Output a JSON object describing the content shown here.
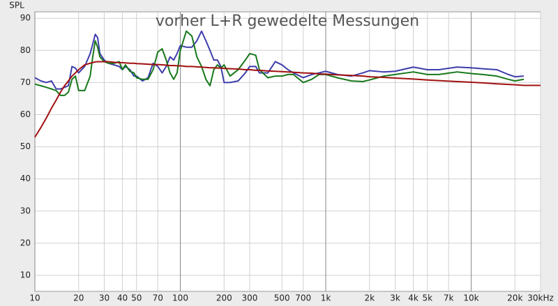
{
  "chart_data": {
    "type": "line",
    "title": "vorher L+R gewedelte Messungen",
    "y_label": "SPL",
    "xscale": "log",
    "grid": true,
    "xlim": [
      10,
      30000
    ],
    "ylim": [
      5,
      92
    ],
    "xticks": [
      10,
      20,
      30,
      40,
      50,
      70,
      100,
      200,
      300,
      500,
      700,
      {
        "value": 1000,
        "label": "1k"
      },
      {
        "value": 2000,
        "label": "2k"
      },
      {
        "value": 3000,
        "label": "3k"
      },
      {
        "value": 4000,
        "label": "4k"
      },
      {
        "value": 5000,
        "label": "5k"
      },
      {
        "value": 7000,
        "label": "7k"
      },
      {
        "value": 10000,
        "label": "10k"
      },
      {
        "value": 20000,
        "label": "20k"
      },
      {
        "value": 30000,
        "label": "30kHz"
      }
    ],
    "yticks": [
      10,
      20,
      30,
      40,
      50,
      60,
      70,
      80,
      90
    ],
    "x": [
      10,
      11,
      12,
      13,
      14,
      15,
      16,
      17,
      18,
      19,
      20,
      22,
      24,
      25,
      26,
      27,
      28,
      30,
      32,
      35,
      38,
      40,
      42,
      45,
      48,
      50,
      55,
      60,
      65,
      70,
      75,
      80,
      85,
      90,
      95,
      100,
      110,
      120,
      130,
      140,
      150,
      160,
      170,
      180,
      190,
      200,
      220,
      250,
      280,
      300,
      330,
      350,
      400,
      450,
      500,
      550,
      600,
      700,
      800,
      900,
      1000,
      1200,
      1500,
      1800,
      2000,
      2500,
      3000,
      4000,
      5000,
      6000,
      8000,
      10000,
      12000,
      15000,
      18000,
      20000,
      23000,
      30000
    ],
    "series": [
      {
        "color": "#3d3dab",
        "values": [
          71.5,
          70.5,
          70,
          70.5,
          68,
          68,
          68.5,
          69,
          75,
          74.5,
          73,
          75,
          79,
          82,
          85,
          84,
          79,
          77,
          76,
          75.5,
          75,
          74,
          75,
          74,
          72,
          72,
          70.5,
          71.5,
          76,
          75,
          73,
          75,
          78,
          77,
          79,
          81.5,
          81,
          81,
          83,
          86,
          83,
          80,
          77,
          77,
          75,
          70,
          70,
          70.5,
          73,
          75,
          75,
          73,
          73,
          76.5,
          75.5,
          74,
          73,
          71.5,
          72.5,
          73,
          73.5,
          72.5,
          72,
          73,
          73.7,
          73.3,
          73.5,
          74.8,
          74,
          74,
          74.8,
          74.6,
          74.3,
          74,
          72.5,
          71.8,
          72,
          null
        ]
      },
      {
        "color": "#16781a",
        "values": [
          69.5,
          69,
          68.5,
          68,
          67.5,
          66,
          66,
          67,
          71,
          72,
          67.5,
          67.5,
          72,
          78,
          83,
          81,
          78,
          76.5,
          76,
          76,
          76.5,
          74,
          75.5,
          73.5,
          73,
          71.5,
          71,
          71,
          74,
          79.5,
          80.5,
          77,
          73,
          71,
          73,
          80,
          86,
          84.5,
          78,
          75,
          71,
          69,
          74,
          75.5,
          74.5,
          75.5,
          72,
          74,
          77,
          79,
          78.5,
          74,
          71.5,
          72,
          72,
          72.5,
          72.5,
          70,
          71,
          72.5,
          72.5,
          71.5,
          70.5,
          70.3,
          70.8,
          72,
          72.5,
          73.3,
          72.5,
          72.5,
          73.3,
          72.8,
          72.5,
          72,
          71,
          70.5,
          71,
          null
        ]
      },
      {
        "color": "#a01010",
        "values": [
          53,
          56,
          59,
          62,
          64.5,
          67,
          69,
          70.5,
          72,
          73,
          74,
          75.5,
          76,
          76.2,
          76.4,
          76.5,
          76.5,
          76.5,
          76.5,
          76.3,
          76.2,
          76.2,
          76.1,
          76,
          76,
          75.9,
          75.8,
          75.7,
          75.6,
          75.6,
          75.5,
          75.4,
          75.3,
          75.3,
          75.2,
          75.2,
          75,
          75,
          74.9,
          74.8,
          74.7,
          74.6,
          74.6,
          74.5,
          74.5,
          74.4,
          74.3,
          74.2,
          74,
          74,
          73.8,
          73.8,
          73.6,
          73.5,
          73.4,
          73.3,
          73.2,
          73,
          72.9,
          72.7,
          72.6,
          72.4,
          72.2,
          72,
          71.8,
          71.6,
          71.4,
          71.1,
          70.8,
          70.6,
          70.3,
          70.1,
          69.9,
          69.6,
          69.4,
          69.3,
          69.1,
          69.1
        ]
      }
    ]
  }
}
